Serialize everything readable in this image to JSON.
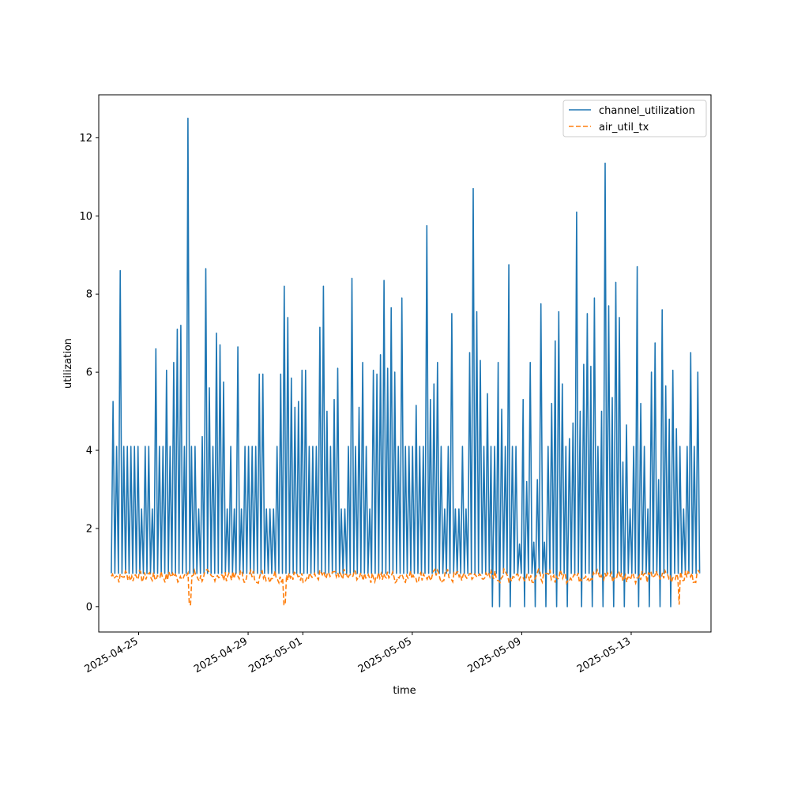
{
  "chart_data": {
    "type": "line",
    "title": "",
    "xlabel": "time",
    "ylabel": "utilization",
    "xlim": [
      "2025-04-23T13:00",
      "2025-05-15T22:00"
    ],
    "ylim": [
      -0.65,
      13.1
    ],
    "x_ticks": [
      "2025-04-25",
      "2025-04-29",
      "2025-05-01",
      "2025-05-05",
      "2025-05-09",
      "2025-05-13"
    ],
    "y_ticks": [
      0,
      2,
      4,
      6,
      8,
      10,
      12
    ],
    "grid": false,
    "legend_position": "top-right",
    "series": [
      {
        "name": "channel_utilization",
        "color": "#1f77b4",
        "style": "solid",
        "start": "2025-04-24T00:00",
        "end": "2025-05-15T12:00",
        "baseline": 0.85,
        "peaks": [
          5.25,
          4.1,
          8.6,
          4.1,
          4.1,
          4.1,
          4.1,
          4.1,
          2.5,
          4.1,
          4.1,
          2.5,
          6.6,
          4.1,
          4.1,
          6.05,
          4.1,
          6.25,
          7.1,
          7.2,
          4.1,
          12.5,
          4.1,
          4.1,
          2.5,
          4.35,
          8.65,
          5.6,
          4.1,
          7.0,
          6.7,
          5.75,
          2.5,
          4.1,
          2.5,
          6.65,
          2.5,
          4.1,
          4.1,
          4.1,
          4.1,
          5.95,
          5.95,
          2.5,
          2.5,
          2.5,
          4.1,
          5.95,
          8.2,
          7.4,
          5.85,
          5.1,
          5.25,
          6.05,
          6.05,
          4.1,
          4.1,
          4.1,
          7.15,
          8.2,
          5.0,
          4.1,
          5.3,
          6.1,
          2.5,
          2.5,
          4.1,
          8.4,
          4.1,
          5.1,
          6.25,
          4.1,
          2.5,
          6.05,
          5.95,
          6.45,
          8.35,
          6.1,
          7.65,
          6.0,
          4.1,
          7.9,
          4.1,
          4.1,
          4.1,
          5.15,
          4.1,
          4.1,
          9.75,
          5.3,
          5.7,
          6.25,
          4.1,
          2.5,
          4.1,
          7.5,
          2.5,
          2.5,
          4.1,
          2.5,
          6.5,
          10.7,
          7.55,
          6.3,
          4.1,
          5.45,
          4.1,
          4.1,
          6.25,
          5.05,
          4.1,
          8.75,
          4.1,
          4.1,
          1.6,
          5.3,
          3.2,
          6.25,
          1.65,
          3.25,
          7.75,
          1.65,
          4.1,
          5.2,
          6.8,
          7.55,
          5.7,
          4.1,
          4.3,
          4.7,
          10.1,
          5.0,
          6.2,
          7.5,
          6.15,
          7.9,
          4.1,
          5.0,
          11.35,
          7.7,
          5.35,
          8.3,
          7.4,
          3.7,
          4.65,
          2.5,
          4.1,
          8.7,
          5.2,
          4.1,
          2.5,
          6.0,
          6.75,
          3.25,
          7.6,
          5.65,
          4.8,
          6.05,
          4.55,
          4.1,
          2.5,
          4.1,
          6.5,
          4.1,
          6.0
        ],
        "zero_dips": [
          "2025-05-07T20:00",
          "2025-05-08T04:00",
          "2025-05-08T14:00",
          "2025-05-09T00:00",
          "2025-05-09T10:00",
          "2025-05-09T20:00",
          "2025-05-10T06:00",
          "2025-05-10T16:00",
          "2025-05-11T02:00",
          "2025-05-11T12:00",
          "2025-05-11T22:00",
          "2025-05-12T08:00",
          "2025-05-12T18:00",
          "2025-05-13T04:00",
          "2025-05-13T14:00",
          "2025-05-14T00:00",
          "2025-05-14T10:00"
        ]
      },
      {
        "name": "air_util_tx",
        "color": "#ff7f0e",
        "style": "dashed",
        "start": "2025-04-24T00:00",
        "end": "2025-05-15T12:00",
        "base_level": 0.78,
        "noise_range": [
          0.55,
          1.0
        ],
        "dips": [
          {
            "x": "2025-04-26T21:00",
            "y": 0.05
          },
          {
            "x": "2025-04-30T08:00",
            "y": 0.05
          },
          {
            "x": "2025-05-14T18:00",
            "y": 0.05
          }
        ]
      }
    ]
  }
}
